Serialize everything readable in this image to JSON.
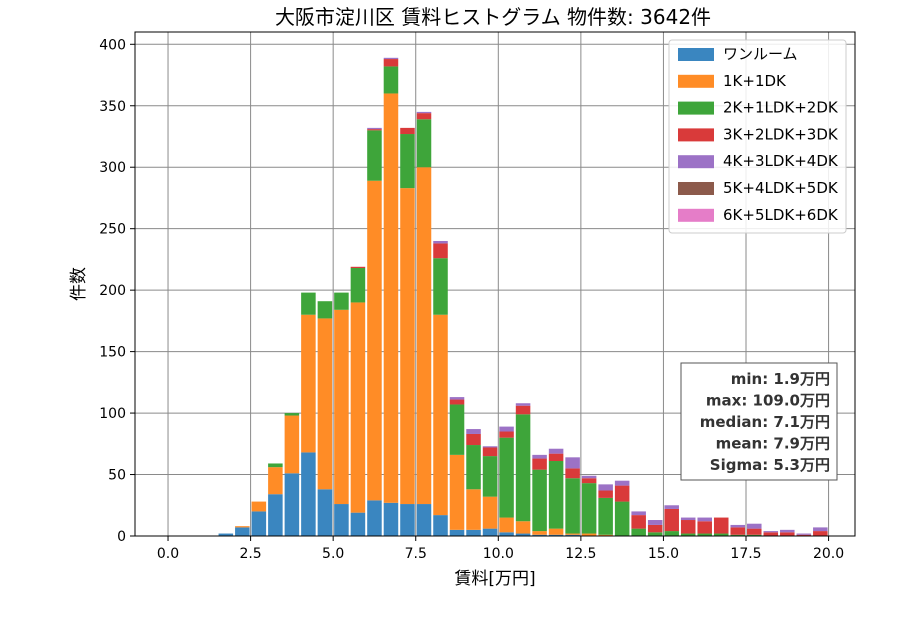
{
  "chart_data": {
    "type": "bar",
    "stacked": true,
    "title": "大阪市淀川区 賃料ヒストグラム 物件数: 3642件",
    "xlabel": "賃料[万円]",
    "ylabel": "件数",
    "xlim": [
      -1.0,
      20.8
    ],
    "ylim": [
      0,
      410
    ],
    "xticks": [
      "0.0",
      "2.5",
      "5.0",
      "7.5",
      "10.0",
      "12.5",
      "15.0",
      "17.5",
      "20.0"
    ],
    "yticks": [
      "0",
      "50",
      "100",
      "150",
      "200",
      "250",
      "300",
      "350",
      "400"
    ],
    "grid": true,
    "legend_position": "top-right",
    "bin_width": 0.5,
    "bin_starts": [
      1.5,
      2.0,
      2.5,
      3.0,
      3.5,
      4.0,
      4.5,
      5.0,
      5.5,
      6.0,
      6.5,
      7.0,
      7.5,
      8.0,
      8.5,
      9.0,
      9.5,
      10.0,
      10.5,
      11.0,
      11.5,
      12.0,
      12.5,
      13.0,
      13.5,
      14.0,
      14.5,
      15.0,
      15.5,
      16.0,
      16.5,
      17.0,
      17.5,
      18.0,
      18.5,
      19.0,
      19.5
    ],
    "series": [
      {
        "name": "ワンルーム",
        "color": "#3a86c0",
        "values": [
          2,
          7,
          20,
          34,
          51,
          68,
          38,
          26,
          19,
          29,
          27,
          26,
          26,
          17,
          5,
          5,
          6,
          3,
          2,
          1,
          1,
          1,
          0,
          0,
          0,
          0,
          0,
          0,
          0,
          0,
          0,
          0,
          0,
          0,
          0,
          0,
          0
        ]
      },
      {
        "name": "1K+1DK",
        "color": "#ff8c26",
        "values": [
          0,
          1,
          8,
          22,
          47,
          112,
          139,
          158,
          171,
          260,
          333,
          257,
          274,
          163,
          61,
          33,
          26,
          12,
          10,
          3,
          5,
          1,
          2,
          1,
          0,
          0,
          0,
          0,
          0,
          0,
          0,
          0,
          0,
          0,
          0,
          0,
          0
        ]
      },
      {
        "name": "2K+1LDK+2DK",
        "color": "#3ea53a",
        "values": [
          0,
          0,
          0,
          3,
          2,
          18,
          14,
          14,
          28,
          41,
          22,
          44,
          39,
          46,
          41,
          36,
          33,
          65,
          87,
          50,
          55,
          45,
          41,
          30,
          28,
          6,
          3,
          4,
          2,
          2,
          2,
          1,
          1,
          0,
          0,
          0,
          0
        ]
      },
      {
        "name": "3K+2LDK+3DK",
        "color": "#d93a3a",
        "values": [
          0,
          0,
          0,
          0,
          0,
          0,
          0,
          0,
          1,
          1,
          6,
          5,
          5,
          12,
          4,
          9,
          7,
          5,
          7,
          9,
          6,
          8,
          4,
          6,
          13,
          11,
          6,
          18,
          11,
          10,
          13,
          6,
          5,
          3,
          3,
          1,
          4
        ]
      },
      {
        "name": "4K+3LDK+4DK",
        "color": "#9c72c6",
        "values": [
          0,
          0,
          0,
          0,
          0,
          0,
          0,
          0,
          0,
          1,
          1,
          0,
          1,
          2,
          2,
          4,
          1,
          4,
          2,
          3,
          4,
          9,
          2,
          5,
          4,
          3,
          4,
          3,
          2,
          3,
          0,
          2,
          4,
          1,
          2,
          1,
          3
        ]
      },
      {
        "name": "5K+4LDK+5DK",
        "color": "#8c5a4b",
        "values": [
          0,
          0,
          0,
          0,
          0,
          0,
          0,
          0,
          0,
          0,
          0,
          0,
          0,
          0,
          0,
          0,
          0,
          0,
          0,
          0,
          0,
          0,
          0,
          0,
          0,
          0,
          0,
          0,
          0,
          0,
          0,
          0,
          0,
          0,
          0,
          0,
          0
        ]
      },
      {
        "name": "6K+5LDK+6DK",
        "color": "#e57dc8",
        "values": [
          0,
          0,
          0,
          0,
          0,
          0,
          0,
          0,
          0,
          0,
          0,
          0,
          0,
          0,
          0,
          0,
          0,
          0,
          0,
          0,
          0,
          0,
          0,
          0,
          0,
          0,
          0,
          0,
          0,
          0,
          0,
          0,
          0,
          0,
          0,
          0,
          0
        ]
      }
    ],
    "stats": {
      "min": "min: 1.9万円",
      "max": "max: 109.0万円",
      "median": "median: 7.1万円",
      "mean": "mean: 7.9万円",
      "sigma": "Sigma: 5.3万円"
    }
  }
}
